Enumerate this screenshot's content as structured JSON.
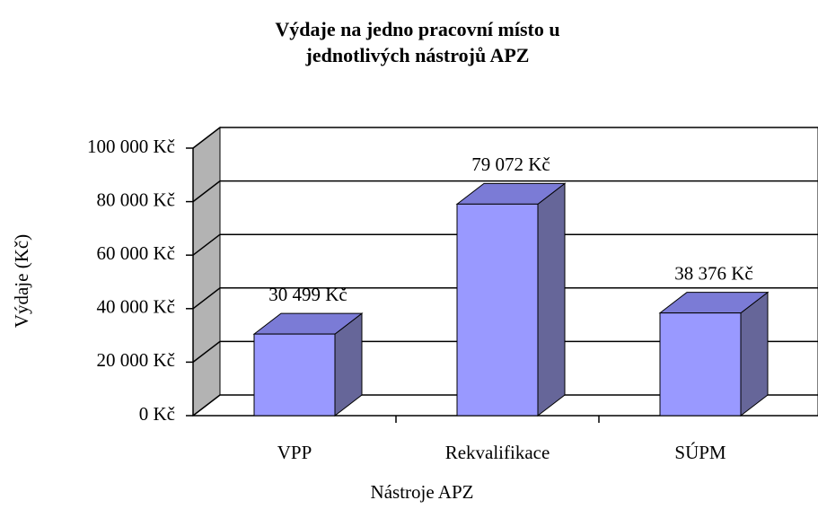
{
  "chart_data": {
    "type": "bar3d",
    "title": "Výdaje na jedno pracovní místo u jednotlivých nástrojů APZ",
    "x_label": "Nástroje APZ",
    "y_label": "Výdaje (Kč)",
    "categories": [
      "VPP",
      "Rekvalifikace",
      "SÚPM"
    ],
    "values": [
      30499,
      79072,
      38376
    ],
    "value_labels": [
      "30 499 Kč",
      "79 072 Kč",
      "38 376 Kč"
    ],
    "color": "#9999ff",
    "ylim": [
      0,
      100000
    ],
    "yticks": [
      {
        "value": 0,
        "label": "0 Kč"
      },
      {
        "value": 20000,
        "label": "20 000 Kč"
      },
      {
        "value": 40000,
        "label": "40 000 Kč"
      },
      {
        "value": 60000,
        "label": "60 000 Kč"
      },
      {
        "value": 80000,
        "label": "80 000 Kč"
      },
      {
        "value": 100000,
        "label": "100 000 Kč"
      }
    ],
    "grid": true
  }
}
